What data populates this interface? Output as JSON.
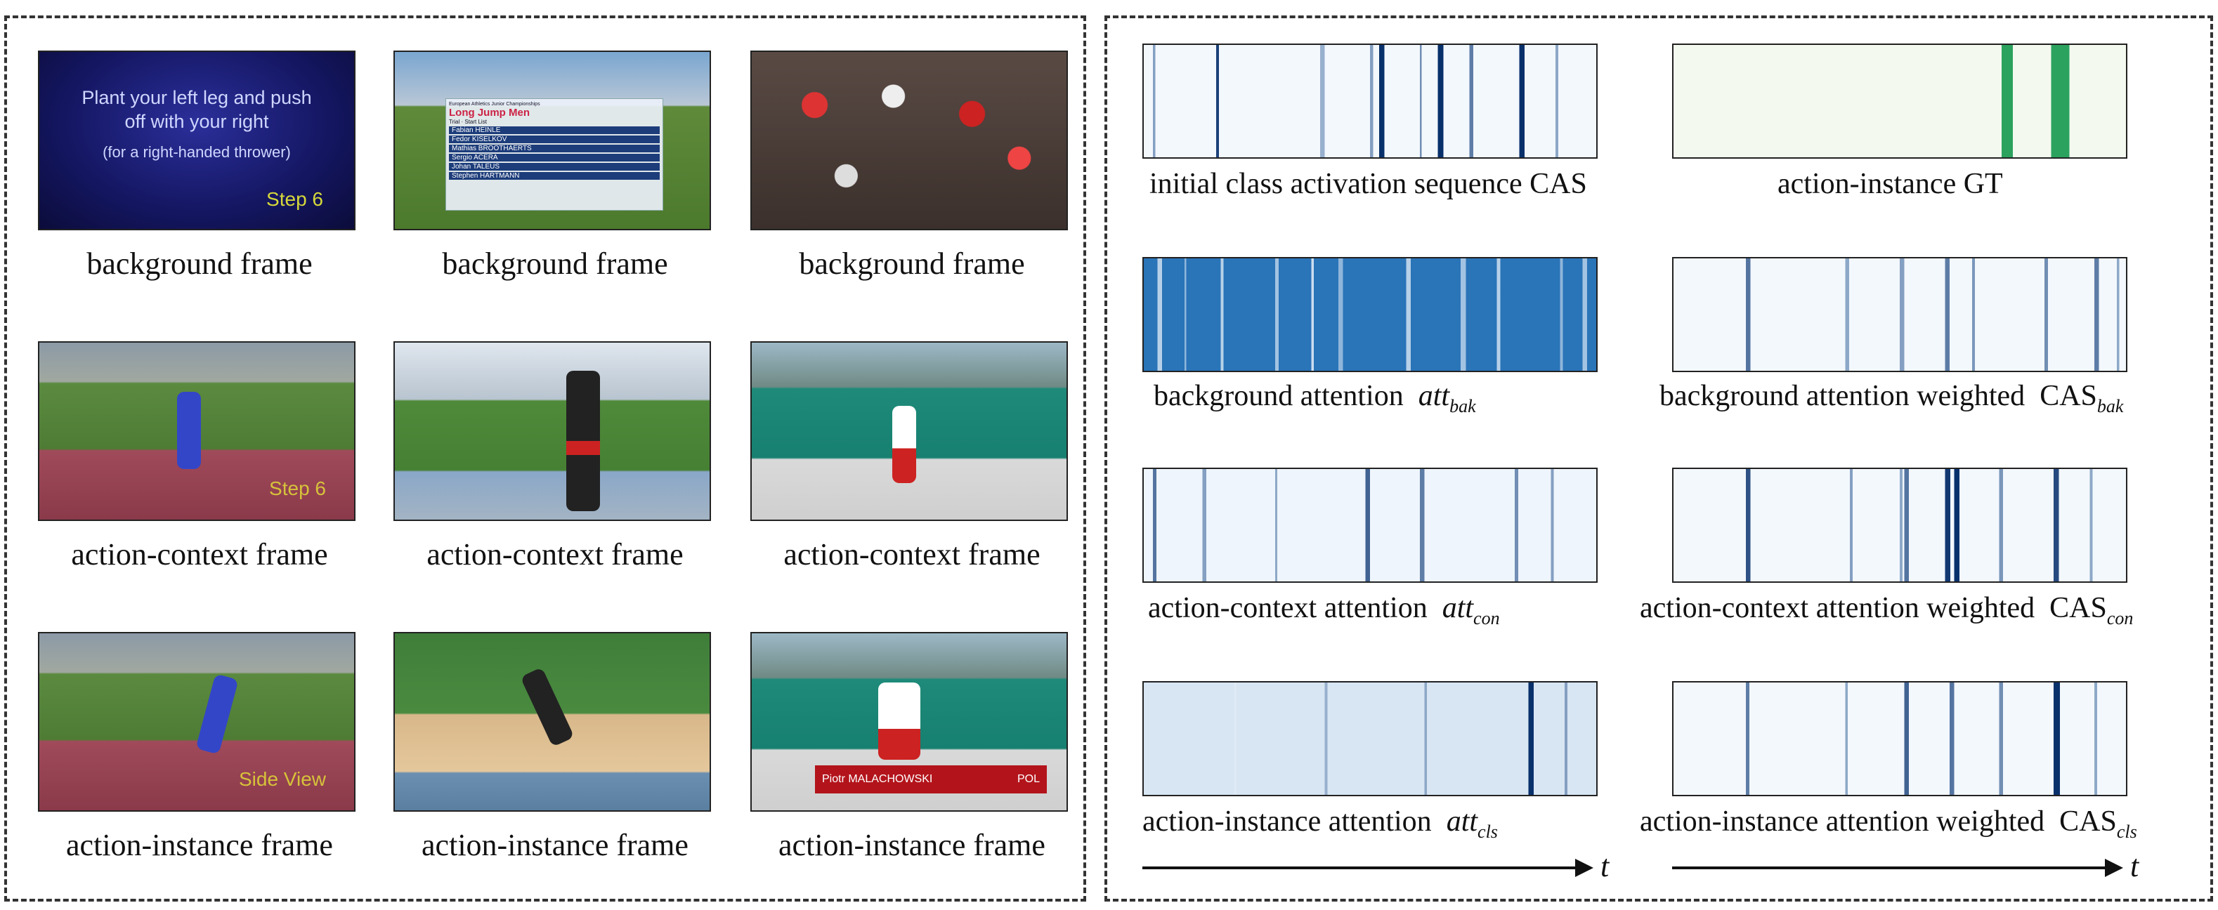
{
  "left": {
    "frames": [
      {
        "caption": "background frame",
        "overlay_lines": [
          "Plant your left leg and push",
          "off with your right",
          "(for a right-handed thrower)",
          "Step 6"
        ]
      },
      {
        "caption": "background frame",
        "overlay_lines": [
          "European Athletics Junior Championships",
          "Long Jump Men",
          "Trial · Start List",
          "Fabian HEINLE",
          "Fedor KISELKOV",
          "Mathias BROOTHAERTS",
          "Sergio ACERA",
          "Johan TALEUS",
          "Stephen HARTMANN"
        ]
      },
      {
        "caption": "background frame",
        "overlay_lines": []
      },
      {
        "caption": "action-context frame",
        "overlay_lines": [
          "Step 6"
        ]
      },
      {
        "caption": "action-context frame",
        "overlay_lines": []
      },
      {
        "caption": "action-context frame",
        "overlay_lines": []
      },
      {
        "caption": "action-instance frame",
        "overlay_lines": [
          "Side View"
        ]
      },
      {
        "caption": "action-instance frame",
        "overlay_lines": []
      },
      {
        "caption": "action-instance frame",
        "overlay_lines": [
          "Piotr MALACHOWSKI",
          "POL"
        ]
      }
    ]
  },
  "right": {
    "strips": [
      {
        "caption": "initial class activation sequence CAS",
        "sub": "",
        "style": "blue"
      },
      {
        "caption": "action-instance GT",
        "sub": "",
        "style": "green"
      },
      {
        "caption": "background attention",
        "var": "att",
        "sub": "bak",
        "style": "blue"
      },
      {
        "caption": "background attention weighted",
        "var": "CAS",
        "sub": "bak",
        "style": "blue"
      },
      {
        "caption": "action-context attention",
        "var": "att",
        "sub": "con",
        "style": "blue"
      },
      {
        "caption": "action-context attention weighted",
        "var": "CAS",
        "sub": "con",
        "style": "blue"
      },
      {
        "caption": "action-instance attention",
        "var": "att",
        "sub": "cls",
        "style": "blue"
      },
      {
        "caption": "action-instance attention weighted",
        "var": "CAS",
        "sub": "cls",
        "style": "blue"
      }
    ],
    "axis_label": "t"
  },
  "colors": {
    "dark_blue": "#08306b",
    "mid_blue": "#2171b5",
    "light_blue": "#c6dbef",
    "green": "#2ca25f",
    "pale_green": "#f3f9ef"
  }
}
